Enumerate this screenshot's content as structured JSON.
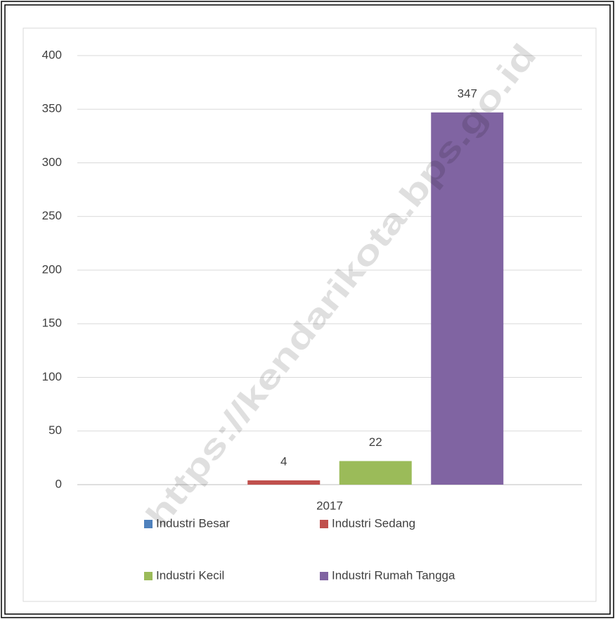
{
  "chart_data": {
    "type": "bar",
    "categories": [
      "2017"
    ],
    "series": [
      {
        "name": "Industri Besar",
        "color": "#4f81bd",
        "values": [
          0
        ],
        "value_labels": [
          null
        ]
      },
      {
        "name": "Industri Sedang",
        "color": "#c0504d",
        "values": [
          4
        ],
        "value_labels": [
          "4"
        ]
      },
      {
        "name": "Industri Kecil",
        "color": "#9bbb59",
        "values": [
          22
        ],
        "value_labels": [
          "22"
        ]
      },
      {
        "name": "Industri Rumah Tangga",
        "color": "#8064a2",
        "values": [
          347
        ],
        "value_labels": [
          "347"
        ]
      }
    ],
    "ylim": [
      0,
      400
    ],
    "yticks": [
      0,
      50,
      100,
      150,
      200,
      250,
      300,
      350,
      400
    ],
    "grid": true,
    "legend": "bottom",
    "watermark": "https://kendarikota.bps.go.id"
  }
}
